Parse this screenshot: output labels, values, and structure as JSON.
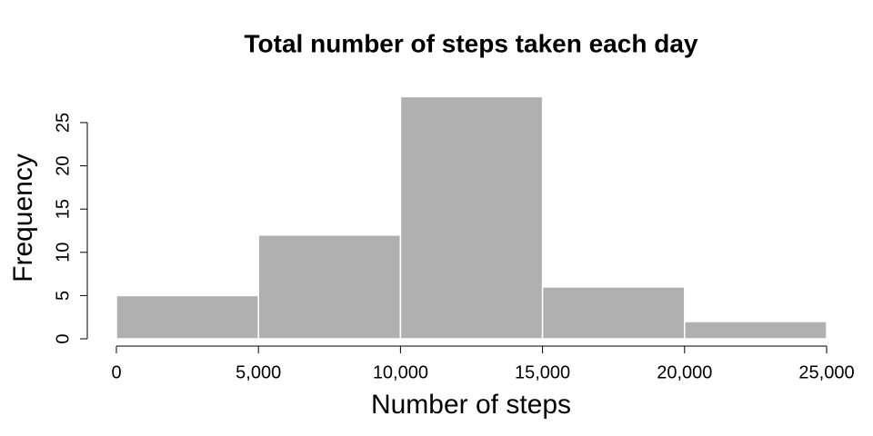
{
  "chart_data": {
    "type": "histogram",
    "title": "Total number of steps taken each day",
    "x_label": "Number of steps",
    "y_label": "Frequency",
    "bins": [
      0,
      5000,
      10000,
      15000,
      20000,
      25000
    ],
    "values": [
      5,
      12,
      28,
      6,
      2
    ],
    "color": "#b0b0b0",
    "edge_color": "#ffffff",
    "xlim": [
      0,
      25000
    ],
    "xticks": [
      0,
      {
        "value": 5000,
        "label": "5,000"
      },
      {
        "value": 10000,
        "label": "10,000"
      },
      {
        "value": 15000,
        "label": "15,000"
      },
      {
        "value": 20000,
        "label": "20,000"
      },
      {
        "value": 25000,
        "label": "25,000"
      }
    ],
    "ylim": [
      0,
      28
    ],
    "yticks": [
      0,
      5,
      10,
      15,
      20,
      25
    ]
  }
}
